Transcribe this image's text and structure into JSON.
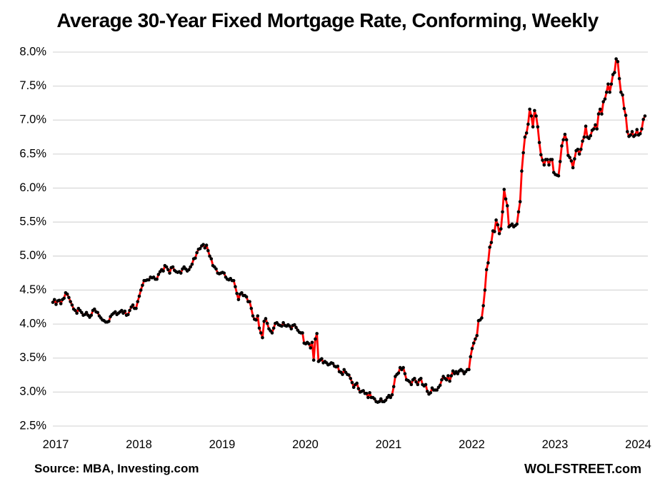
{
  "page": {
    "background": "#ffffff"
  },
  "chart_data": {
    "type": "line",
    "title": "Average 30-Year Fixed Mortgage Rate, Conforming, Weekly",
    "source_note": "Source: MBA, Investing.com",
    "branding": "WOLFSTREET.com",
    "frequency": "weekly",
    "grid": true,
    "legend": "none",
    "ylim": [
      2.5,
      8.0
    ],
    "y_tick_step": 0.5,
    "y_ticks": [
      {
        "value": 8.0,
        "label": "8.0%"
      },
      {
        "value": 7.5,
        "label": "7.5%"
      },
      {
        "value": 7.0,
        "label": "7.0%"
      },
      {
        "value": 6.5,
        "label": "6.5%"
      },
      {
        "value": 6.0,
        "label": "6.0%"
      },
      {
        "value": 5.5,
        "label": "5.5%"
      },
      {
        "value": 5.0,
        "label": "5.0%"
      },
      {
        "value": 4.5,
        "label": "4.5%"
      },
      {
        "value": 4.0,
        "label": "4.0%"
      },
      {
        "value": 3.5,
        "label": "3.5%"
      },
      {
        "value": 3.0,
        "label": "3.0%"
      },
      {
        "value": 2.5,
        "label": "2.5%"
      }
    ],
    "x_ticks": [
      {
        "year": 2017,
        "label": "2017"
      },
      {
        "year": 2018,
        "label": "2018"
      },
      {
        "year": 2019,
        "label": "2019"
      },
      {
        "year": 2020,
        "label": "2020"
      },
      {
        "year": 2021,
        "label": "2021"
      },
      {
        "year": 2022,
        "label": "2022"
      },
      {
        "year": 2023,
        "label": "2023"
      },
      {
        "year": 2024,
        "label": "2024"
      }
    ],
    "colors": {
      "line": "#FF0000",
      "marker": "#000000",
      "gridline": "#D9D9D9",
      "text": "#000000"
    },
    "series": [
      {
        "name": "Average 30-year fixed conforming mortgage rate",
        "unit": "%",
        "start_year": 2017,
        "points_per_year": 52,
        "segments": [
          {
            "year": 2017,
            "values": [
              4.32,
              4.36,
              4.29,
              4.34,
              4.35,
              4.3,
              4.36,
              4.38,
              4.46,
              4.44,
              4.39,
              4.33,
              4.28,
              4.22,
              4.2,
              4.16,
              4.23,
              4.2,
              4.17,
              4.13,
              4.14,
              4.17,
              4.13,
              4.1,
              4.13,
              4.2,
              4.22,
              4.18,
              4.17,
              4.12,
              4.09,
              4.06,
              4.05,
              4.03,
              4.03,
              4.04,
              4.11,
              4.14,
              4.16,
              4.18,
              4.14,
              4.16,
              4.18,
              4.2,
              4.16,
              4.19,
              4.13,
              4.14,
              4.2,
              4.25,
              4.28,
              4.23
            ]
          },
          {
            "year": 2018,
            "values": [
              4.23,
              4.33,
              4.41,
              4.5,
              4.57,
              4.64,
              4.64,
              4.65,
              4.65,
              4.69,
              4.68,
              4.69,
              4.66,
              4.66,
              4.73,
              4.77,
              4.8,
              4.78,
              4.86,
              4.84,
              4.8,
              4.75,
              4.83,
              4.84,
              4.79,
              4.77,
              4.76,
              4.77,
              4.75,
              4.81,
              4.84,
              4.81,
              4.78,
              4.8,
              4.84,
              4.88,
              4.96,
              4.97,
              5.05,
              5.1,
              5.11,
              5.15,
              5.17,
              5.12,
              5.16,
              5.08,
              5.0,
              4.96,
              4.86,
              4.84,
              4.81,
              4.75
            ]
          },
          {
            "year": 2019,
            "values": [
              4.74,
              4.75,
              4.76,
              4.75,
              4.69,
              4.66,
              4.65,
              4.67,
              4.64,
              4.64,
              4.55,
              4.45,
              4.36,
              4.44,
              4.46,
              4.42,
              4.42,
              4.4,
              4.33,
              4.33,
              4.23,
              4.12,
              4.07,
              4.06,
              4.12,
              3.94,
              3.87,
              3.8,
              4.04,
              4.08,
              4.01,
              3.93,
              3.9,
              3.87,
              3.94,
              4.01,
              4.02,
              3.99,
              3.98,
              3.97,
              4.02,
              3.98,
              3.97,
              3.99,
              3.97,
              3.93,
              3.98,
              3.99,
              3.95,
              3.91,
              3.88,
              3.87
            ]
          },
          {
            "year": 2020,
            "values": [
              3.87,
              3.72,
              3.71,
              3.73,
              3.71,
              3.65,
              3.73,
              3.47,
              3.78,
              3.86,
              3.45,
              3.47,
              3.49,
              3.43,
              3.45,
              3.43,
              3.4,
              3.41,
              3.43,
              3.42,
              3.38,
              3.37,
              3.38,
              3.3,
              3.29,
              3.26,
              3.33,
              3.29,
              3.26,
              3.25,
              3.2,
              3.14,
              3.07,
              3.11,
              3.13,
              3.05,
              3.0,
              3.01,
              3.02,
              2.98,
              2.98,
              2.92,
              2.99,
              2.92,
              2.92,
              2.9,
              2.86,
              2.85,
              2.86,
              2.9,
              2.86,
              2.86
            ]
          },
          {
            "year": 2021,
            "values": [
              2.88,
              2.92,
              2.95,
              2.92,
              2.96,
              3.08,
              3.23,
              3.26,
              3.28,
              3.36,
              3.33,
              3.36,
              3.27,
              3.18,
              3.17,
              3.15,
              3.11,
              3.18,
              3.2,
              3.15,
              3.11,
              3.18,
              3.2,
              3.11,
              3.09,
              3.11,
              3.01,
              2.97,
              2.99,
              3.06,
              3.03,
              3.03,
              3.03,
              3.07,
              3.1,
              3.18,
              3.23,
              3.2,
              3.18,
              3.24,
              3.16,
              3.24,
              3.31,
              3.27,
              3.3,
              3.27,
              3.31,
              3.33,
              3.31,
              3.27,
              3.3,
              3.33
            ]
          },
          {
            "year": 2022,
            "values": [
              3.33,
              3.52,
              3.64,
              3.72,
              3.78,
              3.83,
              4.05,
              4.06,
              4.09,
              4.27,
              4.5,
              4.8,
              4.9,
              5.13,
              5.2,
              5.37,
              5.36,
              5.53,
              5.46,
              5.33,
              5.4,
              5.65,
              5.98,
              5.84,
              5.74,
              5.43,
              5.45,
              5.47,
              5.43,
              5.45,
              5.47,
              5.65,
              5.8,
              6.25,
              6.52,
              6.75,
              6.81,
              6.94,
              7.16,
              7.06,
              6.9,
              7.14,
              7.06,
              6.9,
              6.67,
              6.49,
              6.41,
              6.34,
              6.42,
              6.42,
              6.34,
              6.42
            ]
          },
          {
            "year": 2023,
            "values": [
              6.42,
              6.23,
              6.2,
              6.19,
              6.18,
              6.39,
              6.62,
              6.71,
              6.79,
              6.71,
              6.48,
              6.45,
              6.4,
              6.3,
              6.43,
              6.55,
              6.57,
              6.5,
              6.57,
              6.69,
              6.75,
              6.91,
              6.75,
              6.73,
              6.77,
              6.85,
              6.87,
              6.93,
              6.87,
              7.09,
              7.16,
              7.09,
              7.27,
              7.31,
              7.41,
              7.53,
              7.41,
              7.53,
              7.67,
              7.7,
              7.9,
              7.86,
              7.61,
              7.41,
              7.37,
              7.17,
              7.07,
              6.83,
              6.76,
              6.78,
              6.83,
              6.76
            ]
          },
          {
            "year": 2024,
            "values": [
              6.78,
              6.86,
              6.78,
              6.8,
              6.87,
              7.01,
              7.06
            ]
          }
        ]
      }
    ]
  }
}
